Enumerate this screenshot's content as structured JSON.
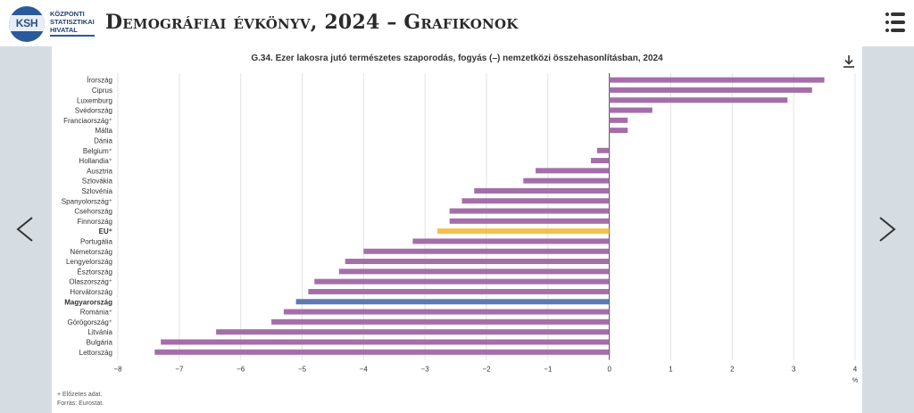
{
  "header": {
    "logo_abbr": "KSH",
    "logo_lines": [
      "KÖZPONTI",
      "STATISZTIKAI",
      "HIVATAL"
    ],
    "title": "Demográfiai évkönyv, 2024 – Grafikonok"
  },
  "icons": {
    "menu": "menu-icon",
    "prev": "chevron-left-icon",
    "next": "chevron-right-icon",
    "download": "download-icon"
  },
  "colors": {
    "bar_default": "#a46fa9",
    "bar_eu": "#f5c04a",
    "bar_hungary": "#5f79b5",
    "side_panel": "#d6dde2"
  },
  "chart_data": {
    "type": "bar",
    "orientation": "horizontal",
    "title": "G.34. Ezer lakosra jutó természetes szaporodás, fogyás (–) nemzetközi összehasonlításban, 2024",
    "unit_label": "%",
    "xlim": [
      -8,
      4
    ],
    "x_ticks": [
      "−8",
      "−7",
      "−6",
      "−5",
      "−4",
      "−3",
      "−2",
      "−1",
      "0",
      "1",
      "2",
      "3",
      "4"
    ],
    "grid": true,
    "categories": [
      "Írország",
      "Ciprus",
      "Luxemburg",
      "Svédország",
      "Franciaország⁺",
      "Málta",
      "Dánia",
      "Belgium⁺",
      "Hollandia⁺",
      "Ausztria",
      "Szlovákia",
      "Szlovénia",
      "Spanyolország⁺",
      "Csehország",
      "Finnország",
      "EU⁺",
      "Portugália",
      "Németország",
      "Lengyelország",
      "Észtország",
      "Olaszország⁺",
      "Horvátország",
      "Magyarország",
      "Románia⁺",
      "Görögország⁺",
      "Litvánia",
      "Bulgária",
      "Lettország"
    ],
    "values": [
      3.5,
      3.3,
      2.9,
      0.7,
      0.3,
      0.3,
      0.0,
      -0.2,
      -0.3,
      -1.2,
      -1.4,
      -2.2,
      -2.4,
      -2.6,
      -2.6,
      -2.8,
      -3.2,
      -4.0,
      -4.3,
      -4.4,
      -4.8,
      -4.9,
      -5.1,
      -5.3,
      -5.5,
      -6.4,
      -7.3,
      -7.4
    ],
    "highlight": {
      "EU⁺": "eu",
      "Magyarország": "hungary"
    },
    "bold_categories": [
      "EU⁺",
      "Magyarország"
    ]
  },
  "footnotes": {
    "preliminary": "+ Előzetes adat.",
    "source": "Forrás: Eurostat."
  }
}
